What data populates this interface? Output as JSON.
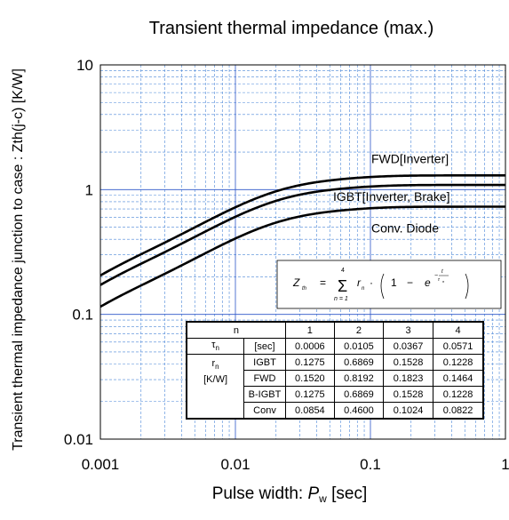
{
  "chart_data": {
    "type": "line",
    "title": "Transient thermal impedance (max.)",
    "xlabel": "Pulse width: P_w [sec]",
    "xlabel_prefix": "Pulse width: ",
    "xlabel_var": "P",
    "xlabel_sub": "w",
    "xlabel_suffix": " [sec]",
    "ylabel": "Transient thermal impedance junction to case  :  Zth(j-c)  [K/W]",
    "xscale": "log",
    "yscale": "log",
    "xlim": [
      0.001,
      1
    ],
    "ylim": [
      0.01,
      10
    ],
    "xticks": [
      "0.001",
      "0.01",
      "0.1",
      "1"
    ],
    "yticks": [
      "0.01",
      "0.1",
      "1",
      "10"
    ],
    "grid": true,
    "series": [
      {
        "name": "FWD[Inverter]",
        "tau": [
          0.0006,
          0.0105,
          0.0367,
          0.0571
        ],
        "r": [
          0.152,
          0.8192,
          0.1823,
          0.1464
        ]
      },
      {
        "name": "IGBT[Inverter, Brake]",
        "tau": [
          0.0006,
          0.0105,
          0.0367,
          0.0571
        ],
        "r": [
          0.1275,
          0.6869,
          0.1528,
          0.1228
        ]
      },
      {
        "name": "Conv. Diode",
        "tau": [
          0.0006,
          0.0105,
          0.0367,
          0.0571
        ],
        "r": [
          0.0854,
          0.46,
          0.1024,
          0.0822
        ]
      }
    ],
    "formula": "Zth = Σ(n=1..4) rn · (1 − e^(−t/τn))"
  },
  "table": {
    "header": {
      "n": "n",
      "cols": [
        "1",
        "2",
        "3",
        "4"
      ]
    },
    "tau_row": {
      "symbol": "τ",
      "sub": "n",
      "unit": "[sec]",
      "values": [
        "0.0006",
        "0.0105",
        "0.0367",
        "0.0571"
      ]
    },
    "r_label": {
      "symbol": "r",
      "sub": "n",
      "unit": "[K/W]"
    },
    "r_rows": [
      {
        "device": "IGBT",
        "values": [
          "0.1275",
          "0.6869",
          "0.1528",
          "0.1228"
        ]
      },
      {
        "device": "FWD",
        "values": [
          "0.1520",
          "0.8192",
          "0.1823",
          "0.1464"
        ]
      },
      {
        "device": "B-IGBT",
        "values": [
          "0.1275",
          "0.6869",
          "0.1528",
          "0.1228"
        ]
      },
      {
        "device": "Conv",
        "values": [
          "0.0854",
          "0.4600",
          "0.1024",
          "0.0822"
        ]
      }
    ]
  },
  "colors": {
    "grid_major": "#2c55c8",
    "grid_minor": "#4a86d8",
    "curve": "#000000",
    "axis": "#000000"
  }
}
